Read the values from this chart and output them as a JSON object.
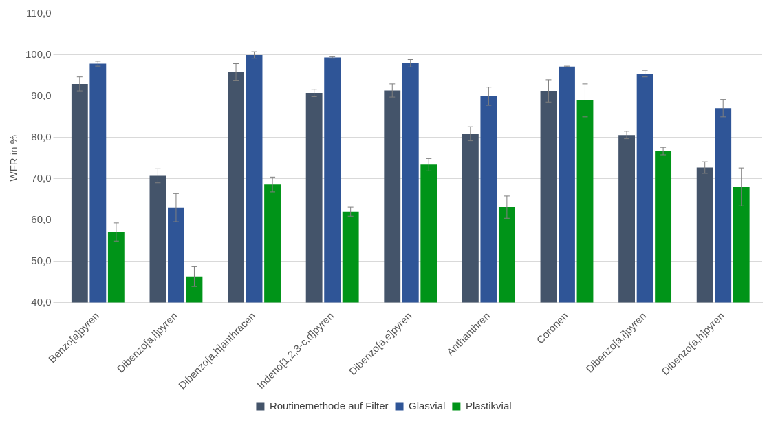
{
  "chart_data": {
    "type": "bar",
    "ylabel": "WFR in %",
    "categories": [
      "Benzo[a]pyren",
      "Dibenzo[a,l]pyren",
      "Dibenzo[a,h]anthracen",
      "Indeno[1,2,3-c,d]pyren",
      "Dibenzo[a,e]pyren",
      "Anthanthren",
      "Coronen",
      "Dibenzo[a,i]pyren",
      "Dibenzo[a,h]pyren"
    ],
    "series": [
      {
        "name": "Routinemethode auf Filter",
        "color": "#44546a",
        "values": [
          93.0,
          70.7,
          95.9,
          90.8,
          91.4,
          80.9,
          91.3,
          80.6,
          72.7
        ],
        "errors": [
          1.7,
          1.7,
          2.0,
          0.9,
          1.6,
          1.7,
          2.7,
          0.9,
          1.4
        ]
      },
      {
        "name": "Glasvial",
        "color": "#2f5597",
        "values": [
          97.9,
          63.0,
          100.0,
          99.4,
          98.0,
          90.0,
          97.2,
          95.5,
          87.1
        ],
        "errors": [
          0.6,
          3.4,
          0.8,
          0.2,
          0.9,
          2.2,
          0.1,
          0.8,
          2.1
        ]
      },
      {
        "name": "Plastikvial",
        "color": "#009418",
        "values": [
          57.1,
          46.3,
          68.6,
          62.0,
          73.4,
          63.1,
          89.0,
          76.7,
          68.0
        ],
        "errors": [
          2.2,
          2.4,
          1.8,
          1.1,
          1.5,
          2.7,
          4.0,
          0.9,
          4.6
        ]
      }
    ],
    "ylim": [
      40,
      110
    ],
    "yticks": [
      {
        "value": 40,
        "label": "40,0"
      },
      {
        "value": 50,
        "label": "50,0"
      },
      {
        "value": 60,
        "label": "60,0"
      },
      {
        "value": 70,
        "label": "70,0"
      },
      {
        "value": 80,
        "label": "80,0"
      },
      {
        "value": 90,
        "label": "90,0"
      },
      {
        "value": 100,
        "label": "100,0"
      },
      {
        "value": 110,
        "label": "110,0"
      }
    ],
    "grid": "y",
    "legend": "bottom"
  }
}
